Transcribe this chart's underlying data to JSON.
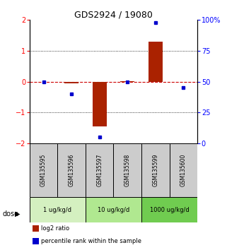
{
  "title": "GDS2924 / 19080",
  "samples": [
    "GSM135595",
    "GSM135596",
    "GSM135597",
    "GSM135598",
    "GSM135599",
    "GSM135600"
  ],
  "log2_ratio": [
    0.0,
    -0.05,
    -1.45,
    0.02,
    1.3,
    0.0
  ],
  "percentile_rank": [
    50,
    40,
    5,
    50,
    98,
    45
  ],
  "ylim_left": [
    -2,
    2
  ],
  "ylim_right": [
    0,
    100
  ],
  "yticks_left": [
    -2,
    -1,
    0,
    1,
    2
  ],
  "yticks_right": [
    0,
    25,
    50,
    75,
    100
  ],
  "yticklabels_right": [
    "0",
    "25",
    "50",
    "75",
    "100%"
  ],
  "dotted_lines": [
    -1,
    1
  ],
  "dose_groups": [
    {
      "label": "1 ug/kg/d",
      "start": 0,
      "end": 1,
      "color": "#d4f0c0"
    },
    {
      "label": "10 ug/kg/d",
      "start": 2,
      "end": 3,
      "color": "#b0e890"
    },
    {
      "label": "1000 ug/kg/d",
      "start": 4,
      "end": 5,
      "color": "#70cc50"
    }
  ],
  "bar_color": "#aa2200",
  "dot_color": "#0000cc",
  "dashed_line_color": "#cc0000",
  "background_color": "#ffffff",
  "sample_box_color": "#cccccc",
  "bar_width": 0.5
}
